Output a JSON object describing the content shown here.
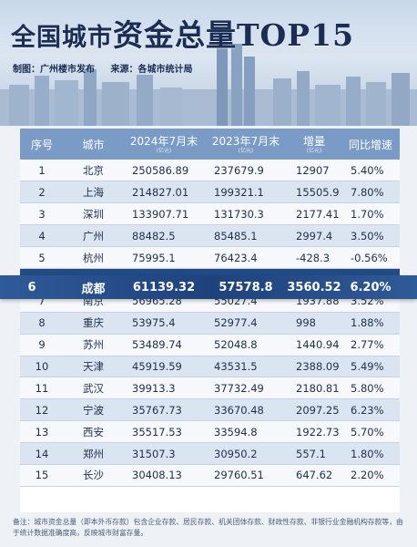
{
  "header": {
    "title_prefix": "全国城市",
    "title_main": "资金总量TOP15",
    "credit_maker": "制图：广州楼市发布",
    "credit_source": "来源：各城市统计局"
  },
  "table": {
    "columns": {
      "rank": "序号",
      "city": "城市",
      "y2024": "2024年7月末",
      "y2024_unit": "(亿元)",
      "y2023": "2023年7月末",
      "y2023_unit": "(亿元)",
      "increase": "增量",
      "increase_unit": "(亿元)",
      "yoy": "同比增速"
    },
    "rows": [
      {
        "rank": "1",
        "city": "北京",
        "y2024": "250586.89",
        "y2023": "237679.9",
        "increase": "12907",
        "yoy": "5.40%"
      },
      {
        "rank": "2",
        "city": "上海",
        "y2024": "214827.01",
        "y2023": "199321.1",
        "increase": "15505.9",
        "yoy": "7.80%"
      },
      {
        "rank": "3",
        "city": "深圳",
        "y2024": "133907.71",
        "y2023": "131730.3",
        "increase": "2177.41",
        "yoy": "1.70%"
      },
      {
        "rank": "4",
        "city": "广州",
        "y2024": "88482.5",
        "y2023": "85485.1",
        "increase": "2997.4",
        "yoy": "3.50%"
      },
      {
        "rank": "5",
        "city": "杭州",
        "y2024": "75995.1",
        "y2023": "76423.4",
        "increase": "-428.3",
        "yoy": "-0.56%"
      },
      {
        "rank": "6",
        "city": "成都",
        "y2024": "61139.32",
        "y2023": "57578.8",
        "increase": "3560.52",
        "yoy": "6.20%"
      },
      {
        "rank": "7",
        "city": "南京",
        "y2024": "56965.28",
        "y2023": "55027.4",
        "increase": "1937.88",
        "yoy": "3.52%"
      },
      {
        "rank": "8",
        "city": "重庆",
        "y2024": "53975.4",
        "y2023": "52977.4",
        "increase": "998",
        "yoy": "1.88%"
      },
      {
        "rank": "9",
        "city": "苏州",
        "y2024": "53489.74",
        "y2023": "52048.8",
        "increase": "1440.94",
        "yoy": "2.77%"
      },
      {
        "rank": "10",
        "city": "天津",
        "y2024": "45919.59",
        "y2023": "43531.5",
        "increase": "2388.09",
        "yoy": "5.49%"
      },
      {
        "rank": "11",
        "city": "武汉",
        "y2024": "39913.3",
        "y2023": "37732.49",
        "increase": "2180.81",
        "yoy": "5.80%"
      },
      {
        "rank": "12",
        "city": "宁波",
        "y2024": "35767.73",
        "y2023": "33670.48",
        "increase": "2097.25",
        "yoy": "6.23%"
      },
      {
        "rank": "13",
        "city": "西安",
        "y2024": "35517.53",
        "y2023": "33594.8",
        "increase": "1922.73",
        "yoy": "5.70%"
      },
      {
        "rank": "14",
        "city": "郑州",
        "y2024": "31507.3",
        "y2023": "30950.2",
        "increase": "557.1",
        "yoy": "1.80%"
      },
      {
        "rank": "15",
        "city": "长沙",
        "y2024": "30408.13",
        "y2023": "29760.51",
        "increase": "647.62",
        "yoy": "2.20%"
      }
    ]
  },
  "footnote": "备注：城市资金总量（即本外币存款）包含企业存款、居民存款、机关团体存款、财政性存款、非银行业金融机构存款等，由于统计数据准确度高，反映城市财富存量。",
  "colors": {
    "header_row": "#7a9bc6",
    "highlight": "#234a85",
    "title": "#1b2d55"
  }
}
